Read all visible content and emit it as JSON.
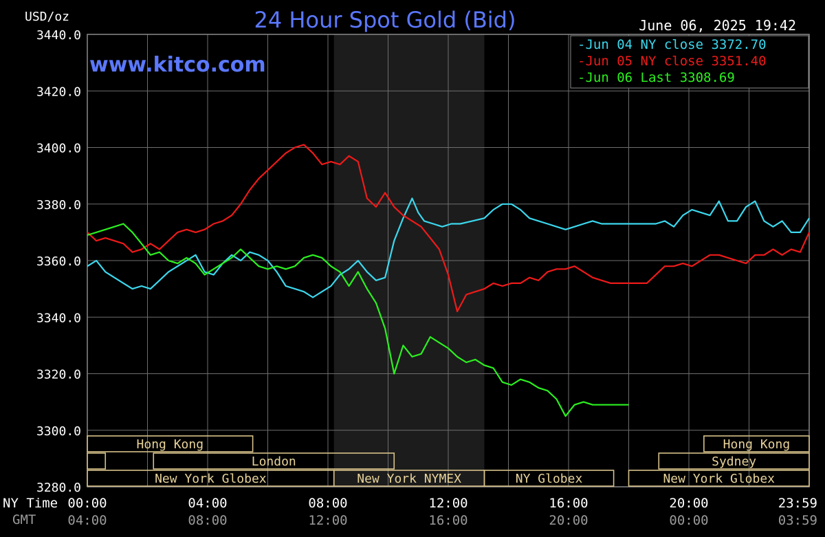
{
  "header": {
    "title": "24 Hour Spot Gold (Bid)",
    "unit": "USD/oz",
    "timestamp": "June 06, 2025 19:42",
    "watermark": "www.kitco.com"
  },
  "axis_labels": {
    "ny_time": "NY Time",
    "gmt": "GMT"
  },
  "colors": {
    "background": "#000000",
    "grid": "#6e6e6e",
    "highlight": "#1c1c1c",
    "title": "#5b78ff",
    "session": "#d8c28a",
    "jun04": "#3cd8ee",
    "jun05": "#ee1a1a",
    "jun06": "#2cf020"
  },
  "legend": [
    {
      "key": "jun04",
      "text": "Jun 04 NY close 3372.70"
    },
    {
      "key": "jun05",
      "text": "Jun 05 NY close 3351.40"
    },
    {
      "key": "jun06",
      "text": "Jun 06 Last 3308.69"
    }
  ],
  "sessions": [
    {
      "label": "Hong Kong",
      "row": 0,
      "start": 0,
      "end": 5.5
    },
    {
      "label": "",
      "row": 1,
      "start": 0,
      "end": 0.6
    },
    {
      "label": "London",
      "row": 1,
      "start": 2.2,
      "end": 10.2
    },
    {
      "label": "New York Globex",
      "row": 2,
      "start": 0,
      "end": 8.2
    },
    {
      "label": "New York NYMEX",
      "row": 2,
      "start": 8.2,
      "end": 13.2
    },
    {
      "label": "NY Globex",
      "row": 2,
      "start": 13.2,
      "end": 17.5
    },
    {
      "label": "Hong Kong",
      "row": 0,
      "start": 20.5,
      "end": 24
    },
    {
      "label": "Sydney",
      "row": 1,
      "start": 19.0,
      "end": 24
    },
    {
      "label": "New York Globex",
      "row": 2,
      "start": 18.0,
      "end": 24
    }
  ],
  "chart_data": {
    "type": "line",
    "title": "24 Hour Spot Gold (Bid)",
    "ylabel": "USD/oz",
    "ylim": [
      3280,
      3440
    ],
    "yticks": [
      "3440.0",
      "3420.0",
      "3400.0",
      "3380.0",
      "3360.0",
      "3340.0",
      "3320.0",
      "3300.0",
      "3280.0"
    ],
    "ytick_values": [
      3440,
      3420,
      3400,
      3380,
      3360,
      3340,
      3320,
      3300,
      3280
    ],
    "xlim": [
      0,
      24
    ],
    "xticks_ny": [
      "00:00",
      "04:00",
      "08:00",
      "12:00",
      "16:00",
      "20:00",
      "23:59"
    ],
    "xticks_gmt": [
      "04:00",
      "08:00",
      "12:00",
      "16:00",
      "20:00",
      "00:00",
      "03:59"
    ],
    "xtick_hours": [
      0,
      4,
      8,
      12,
      16,
      20,
      24
    ],
    "grid": true,
    "highlight_hours": [
      8.2,
      13.2
    ],
    "legend_position": "top-right",
    "series": [
      {
        "key": "jun04",
        "name": "Jun 04 NY close 3372.70",
        "x": [
          0,
          0.3,
          0.6,
          0.9,
          1.2,
          1.5,
          1.8,
          2.1,
          2.4,
          2.7,
          3.0,
          3.3,
          3.6,
          3.9,
          4.2,
          4.5,
          4.8,
          5.1,
          5.4,
          5.7,
          6.0,
          6.3,
          6.6,
          6.9,
          7.2,
          7.5,
          7.8,
          8.1,
          8.4,
          8.7,
          9.0,
          9.3,
          9.6,
          9.9,
          10.2,
          10.5,
          10.8,
          11.0,
          11.2,
          11.5,
          11.8,
          12.1,
          12.4,
          12.8,
          13.2,
          13.5,
          13.8,
          14.1,
          14.4,
          14.7,
          15.0,
          15.3,
          15.6,
          15.9,
          16.2,
          16.5,
          16.8,
          17.1,
          17.4,
          17.7,
          18.0,
          18.3,
          18.6,
          18.9,
          19.2,
          19.5,
          19.8,
          20.1,
          20.4,
          20.7,
          21.0,
          21.3,
          21.6,
          21.9,
          22.2,
          22.5,
          22.8,
          23.1,
          23.4,
          23.7,
          24.0
        ],
        "values": [
          3358,
          3360,
          3356,
          3354,
          3352,
          3350,
          3351,
          3350,
          3353,
          3356,
          3358,
          3360,
          3362,
          3356,
          3355,
          3359,
          3362,
          3360,
          3363,
          3362,
          3360,
          3356,
          3351,
          3350,
          3349,
          3347,
          3349,
          3351,
          3355,
          3357,
          3360,
          3356,
          3353,
          3354,
          3367,
          3375,
          3382,
          3377,
          3374,
          3373,
          3372,
          3373,
          3373,
          3374,
          3375,
          3378,
          3380,
          3380,
          3378,
          3375,
          3374,
          3373,
          3372,
          3371,
          3372,
          3373,
          3374,
          3373,
          3373,
          3373,
          3373,
          3373,
          3373,
          3373,
          3374,
          3372,
          3376,
          3378,
          3377,
          3376,
          3381,
          3374,
          3374,
          3379,
          3381,
          3374,
          3372,
          3374,
          3370,
          3370,
          3375
        ]
      },
      {
        "key": "jun05",
        "name": "Jun 05 NY close 3351.40",
        "x": [
          0,
          0.3,
          0.6,
          0.9,
          1.2,
          1.5,
          1.8,
          2.1,
          2.4,
          2.7,
          3.0,
          3.3,
          3.6,
          3.9,
          4.2,
          4.5,
          4.8,
          5.1,
          5.4,
          5.7,
          6.0,
          6.3,
          6.6,
          6.9,
          7.2,
          7.5,
          7.8,
          8.1,
          8.4,
          8.7,
          9.0,
          9.3,
          9.6,
          9.9,
          10.2,
          10.5,
          10.8,
          11.1,
          11.4,
          11.7,
          12.0,
          12.3,
          12.6,
          12.9,
          13.2,
          13.5,
          13.8,
          14.1,
          14.4,
          14.7,
          15.0,
          15.3,
          15.6,
          15.9,
          16.2,
          16.5,
          16.8,
          17.1,
          17.4,
          17.7,
          18.0,
          18.3,
          18.6,
          18.9,
          19.2,
          19.5,
          19.8,
          20.1,
          20.4,
          20.7,
          21.0,
          21.3,
          21.6,
          21.9,
          22.2,
          22.5,
          22.8,
          23.1,
          23.4,
          23.7,
          24.0
        ],
        "values": [
          3370,
          3367,
          3368,
          3367,
          3366,
          3363,
          3364,
          3366,
          3364,
          3367,
          3370,
          3371,
          3370,
          3371,
          3373,
          3374,
          3376,
          3380,
          3385,
          3389,
          3392,
          3395,
          3398,
          3400,
          3401,
          3398,
          3394,
          3395,
          3394,
          3397,
          3395,
          3382,
          3379,
          3384,
          3379,
          3376,
          3374,
          3372,
          3368,
          3364,
          3355,
          3342,
          3348,
          3349,
          3350,
          3352,
          3351,
          3352,
          3352,
          3354,
          3353,
          3356,
          3357,
          3357,
          3358,
          3356,
          3354,
          3353,
          3352,
          3352,
          3352,
          3352,
          3352,
          3355,
          3358,
          3358,
          3359,
          3358,
          3360,
          3362,
          3362,
          3361,
          3360,
          3359,
          3362,
          3362,
          3364,
          3362,
          3364,
          3363,
          3370
        ]
      },
      {
        "key": "jun06",
        "name": "Jun 06 Last 3308.69",
        "x": [
          0,
          0.3,
          0.6,
          0.9,
          1.2,
          1.5,
          1.8,
          2.1,
          2.4,
          2.7,
          3.0,
          3.3,
          3.6,
          3.9,
          4.2,
          4.5,
          4.8,
          5.1,
          5.4,
          5.7,
          6.0,
          6.3,
          6.6,
          6.9,
          7.2,
          7.5,
          7.8,
          8.1,
          8.4,
          8.7,
          9.0,
          9.3,
          9.6,
          9.9,
          10.2,
          10.5,
          10.8,
          11.1,
          11.4,
          11.7,
          12.0,
          12.3,
          12.6,
          12.9,
          13.2,
          13.5,
          13.8,
          14.1,
          14.4,
          14.7,
          15.0,
          15.3,
          15.6,
          15.9,
          16.2,
          16.5,
          16.8,
          17.1,
          17.4,
          17.7,
          18.0
        ],
        "values": [
          3369,
          3370,
          3371,
          3372,
          3373,
          3370,
          3366,
          3362,
          3363,
          3360,
          3359,
          3361,
          3359,
          3355,
          3357,
          3359,
          3361,
          3364,
          3361,
          3358,
          3357,
          3358,
          3357,
          3358,
          3361,
          3362,
          3361,
          3358,
          3356,
          3351,
          3356,
          3350,
          3345,
          3336,
          3320,
          3330,
          3326,
          3327,
          3333,
          3331,
          3329,
          3326,
          3324,
          3325,
          3323,
          3322,
          3317,
          3316,
          3318,
          3317,
          3315,
          3314,
          3311,
          3305,
          3309,
          3310,
          3309,
          3309,
          3309,
          3309,
          3309
        ]
      }
    ]
  }
}
